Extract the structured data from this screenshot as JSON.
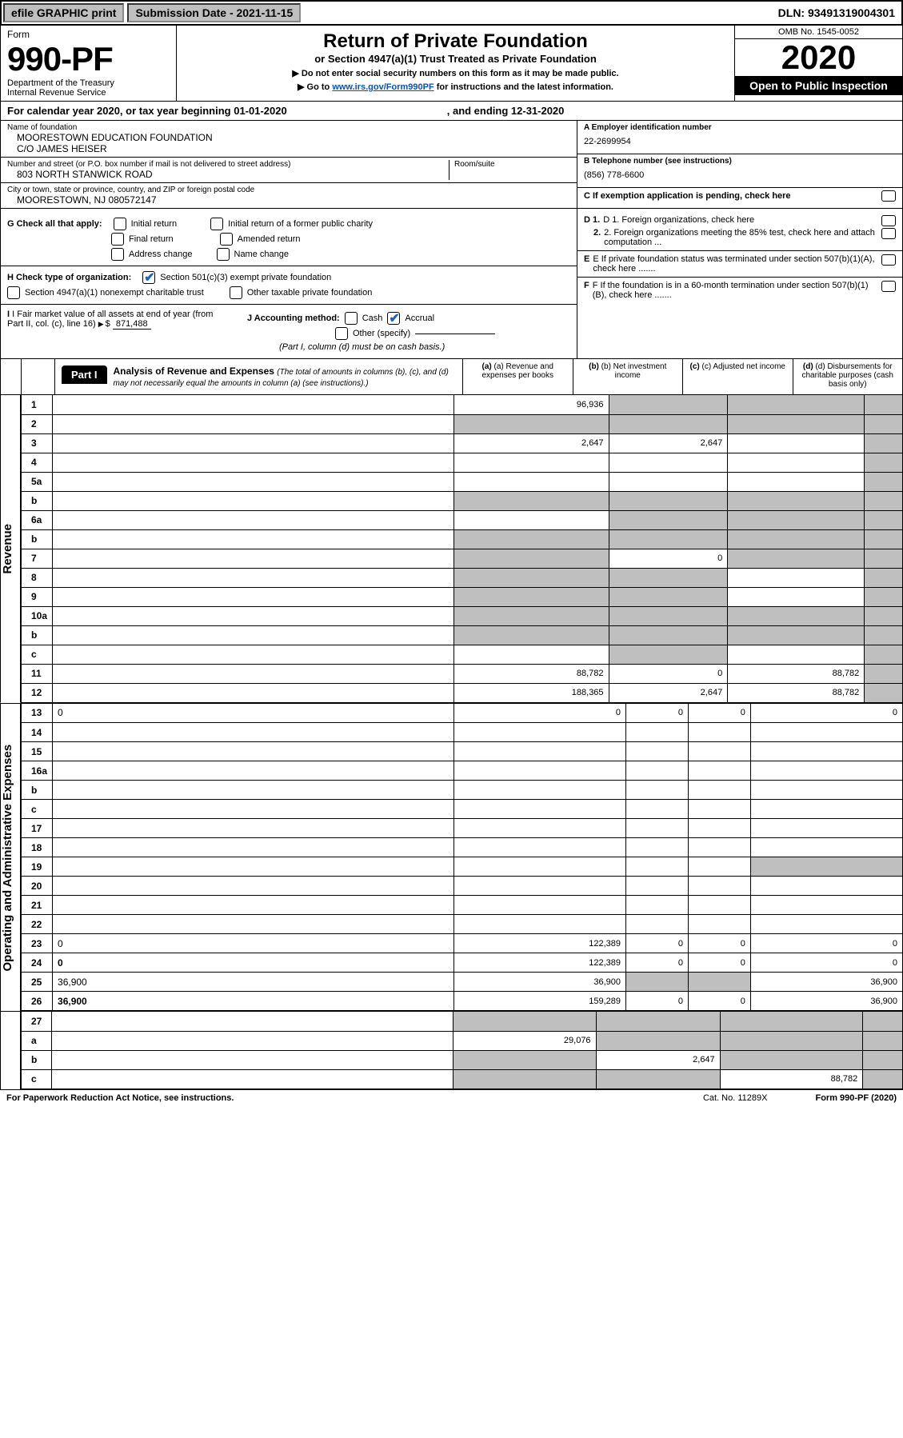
{
  "topbar": {
    "efile": "efile GRAPHIC print",
    "subdate": "Submission Date - 2021-11-15",
    "dln": "DLN: 93491319004301"
  },
  "header": {
    "form": "Form",
    "formnum": "990-PF",
    "dept": "Department of the Treasury",
    "irs": "Internal Revenue Service",
    "title": "Return of Private Foundation",
    "subtitle": "or Section 4947(a)(1) Trust Treated as Private Foundation",
    "note1": "▶ Do not enter social security numbers on this form as it may be made public.",
    "note2_pre": "▶ Go to ",
    "note2_link": "www.irs.gov/Form990PF",
    "note2_post": " for instructions and the latest information.",
    "omb": "OMB No. 1545-0052",
    "year": "2020",
    "inspect": "Open to Public Inspection"
  },
  "calyear": {
    "text": "For calendar year 2020, or tax year beginning 01-01-2020",
    "ending": ", and ending 12-31-2020"
  },
  "info": {
    "name_lbl": "Name of foundation",
    "name": "MOORESTOWN EDUCATION FOUNDATION",
    "name2": "C/O JAMES HEISER",
    "addr_lbl": "Number and street (or P.O. box number if mail is not delivered to street address)",
    "addr": "803 NORTH STANWICK ROAD",
    "room_lbl": "Room/suite",
    "city_lbl": "City or town, state or province, country, and ZIP or foreign postal code",
    "city": "MOORESTOWN, NJ  080572147",
    "a_lbl": "A Employer identification number",
    "a_val": "22-2699954",
    "b_lbl": "B Telephone number (see instructions)",
    "b_val": "(856) 778-6600",
    "c_lbl": "C If exemption application is pending, check here"
  },
  "checks": {
    "g": "G Check all that apply:",
    "g_initial": "Initial return",
    "g_initial_public": "Initial return of a former public charity",
    "g_final": "Final return",
    "g_amended": "Amended return",
    "g_address": "Address change",
    "g_name": "Name change",
    "h": "H Check type of organization:",
    "h_501": "Section 501(c)(3) exempt private foundation",
    "h_4947": "Section 4947(a)(1) nonexempt charitable trust",
    "h_other": "Other taxable private foundation",
    "i": "I Fair market value of all assets at end of year (from Part II, col. (c), line 16)",
    "i_val": "871,488",
    "j": "J Accounting method:",
    "j_cash": "Cash",
    "j_accrual": "Accrual",
    "j_other": "Other (specify)",
    "j_note": "(Part I, column (d) must be on cash basis.)",
    "d1": "D 1. Foreign organizations, check here",
    "d2": "2. Foreign organizations meeting the 85% test, check here and attach computation ...",
    "e": "E  If private foundation status was terminated under section 507(b)(1)(A), check here .......",
    "f": "F  If the foundation is in a 60-month termination under section 507(b)(1)(B), check here ......."
  },
  "part1": {
    "tab": "Part I",
    "title": "Analysis of Revenue and Expenses",
    "note": "(The total of amounts in columns (b), (c), and (d) may not necessarily equal the amounts in column (a) (see instructions).)",
    "col_a": "(a) Revenue and expenses per books",
    "col_b": "(b) Net investment income",
    "col_c": "(c) Adjusted net income",
    "col_d": "(d) Disbursements for charitable purposes (cash basis only)"
  },
  "sidelabels": {
    "rev": "Revenue",
    "exp": "Operating and Administrative Expenses"
  },
  "rows_rev": [
    {
      "n": "1",
      "d": "",
      "a": "96,936",
      "b": "",
      "c": "",
      "agrey": false,
      "bgrey": true,
      "cgrey": true,
      "dgrey": true
    },
    {
      "n": "2",
      "d": "",
      "a": "",
      "b": "",
      "c": "",
      "agrey": true,
      "bgrey": true,
      "cgrey": true,
      "dgrey": true,
      "bold": false,
      "inline": true
    },
    {
      "n": "3",
      "d": "",
      "a": "2,647",
      "b": "2,647",
      "c": "",
      "dgrey": true
    },
    {
      "n": "4",
      "d": "",
      "a": "",
      "b": "",
      "c": "",
      "dgrey": true
    },
    {
      "n": "5a",
      "d": "",
      "a": "",
      "b": "",
      "c": "",
      "dgrey": true
    },
    {
      "n": "b",
      "d": "",
      "a": "",
      "b": "",
      "c": "",
      "agrey": true,
      "bgrey": true,
      "cgrey": true,
      "dgrey": true,
      "box": true
    },
    {
      "n": "6a",
      "d": "",
      "a": "",
      "b": "",
      "c": "",
      "bgrey": true,
      "cgrey": true,
      "dgrey": true
    },
    {
      "n": "b",
      "d": "",
      "a": "",
      "b": "",
      "c": "",
      "agrey": true,
      "bgrey": true,
      "cgrey": true,
      "dgrey": true,
      "box": true
    },
    {
      "n": "7",
      "d": "",
      "a": "",
      "b": "0",
      "c": "",
      "agrey": true,
      "cgrey": true,
      "dgrey": true
    },
    {
      "n": "8",
      "d": "",
      "a": "",
      "b": "",
      "c": "",
      "agrey": true,
      "bgrey": true,
      "dgrey": true
    },
    {
      "n": "9",
      "d": "",
      "a": "",
      "b": "",
      "c": "",
      "agrey": true,
      "bgrey": true,
      "dgrey": true
    },
    {
      "n": "10a",
      "d": "",
      "a": "",
      "b": "",
      "c": "",
      "agrey": true,
      "bgrey": true,
      "cgrey": true,
      "dgrey": true,
      "box": true
    },
    {
      "n": "b",
      "d": "",
      "a": "",
      "b": "",
      "c": "",
      "agrey": true,
      "bgrey": true,
      "cgrey": true,
      "dgrey": true,
      "box": true
    },
    {
      "n": "c",
      "d": "",
      "a": "",
      "b": "",
      "c": "",
      "bgrey": true,
      "dgrey": true
    },
    {
      "n": "11",
      "d": "",
      "a": "88,782",
      "b": "0",
      "c": "88,782",
      "dgrey": true
    },
    {
      "n": "12",
      "d": "",
      "a": "188,365",
      "b": "2,647",
      "c": "88,782",
      "dgrey": true,
      "bold": true
    }
  ],
  "rows_exp": [
    {
      "n": "13",
      "d": "0",
      "a": "0",
      "b": "0",
      "c": "0"
    },
    {
      "n": "14",
      "d": "",
      "a": "",
      "b": "",
      "c": ""
    },
    {
      "n": "15",
      "d": "",
      "a": "",
      "b": "",
      "c": ""
    },
    {
      "n": "16a",
      "d": "",
      "a": "",
      "b": "",
      "c": ""
    },
    {
      "n": "b",
      "d": "",
      "a": "",
      "b": "",
      "c": ""
    },
    {
      "n": "c",
      "d": "",
      "a": "",
      "b": "",
      "c": ""
    },
    {
      "n": "17",
      "d": "",
      "a": "",
      "b": "",
      "c": ""
    },
    {
      "n": "18",
      "d": "",
      "a": "",
      "b": "",
      "c": ""
    },
    {
      "n": "19",
      "d": "",
      "a": "",
      "b": "",
      "c": "",
      "dgrey": true
    },
    {
      "n": "20",
      "d": "",
      "a": "",
      "b": "",
      "c": ""
    },
    {
      "n": "21",
      "d": "",
      "a": "",
      "b": "",
      "c": ""
    },
    {
      "n": "22",
      "d": "",
      "a": "",
      "b": "",
      "c": ""
    },
    {
      "n": "23",
      "d": "0",
      "a": "122,389",
      "b": "0",
      "c": "0"
    },
    {
      "n": "24",
      "d": "0",
      "a": "122,389",
      "b": "0",
      "c": "0",
      "bold": true
    },
    {
      "n": "25",
      "d": "36,900",
      "a": "36,900",
      "b": "",
      "c": "",
      "bgrey": true,
      "cgrey": true
    },
    {
      "n": "26",
      "d": "36,900",
      "a": "159,289",
      "b": "0",
      "c": "0",
      "bold": true
    }
  ],
  "rows_bot": [
    {
      "n": "27",
      "d": "",
      "a": "",
      "b": "",
      "c": "",
      "agrey": true,
      "bgrey": true,
      "cgrey": true,
      "dgrey": true
    },
    {
      "n": "a",
      "d": "",
      "a": "29,076",
      "b": "",
      "c": "",
      "bold": true,
      "bgrey": true,
      "cgrey": true,
      "dgrey": true
    },
    {
      "n": "b",
      "d": "",
      "a": "",
      "b": "2,647",
      "c": "",
      "bold": true,
      "agrey": true,
      "cgrey": true,
      "dgrey": true
    },
    {
      "n": "c",
      "d": "",
      "a": "",
      "b": "",
      "c": "88,782",
      "bold": true,
      "agrey": true,
      "bgrey": true,
      "dgrey": true
    }
  ],
  "footer": {
    "pra": "For Paperwork Reduction Act Notice, see instructions.",
    "cat": "Cat. No. 11289X",
    "form": "Form 990-PF (2020)"
  }
}
